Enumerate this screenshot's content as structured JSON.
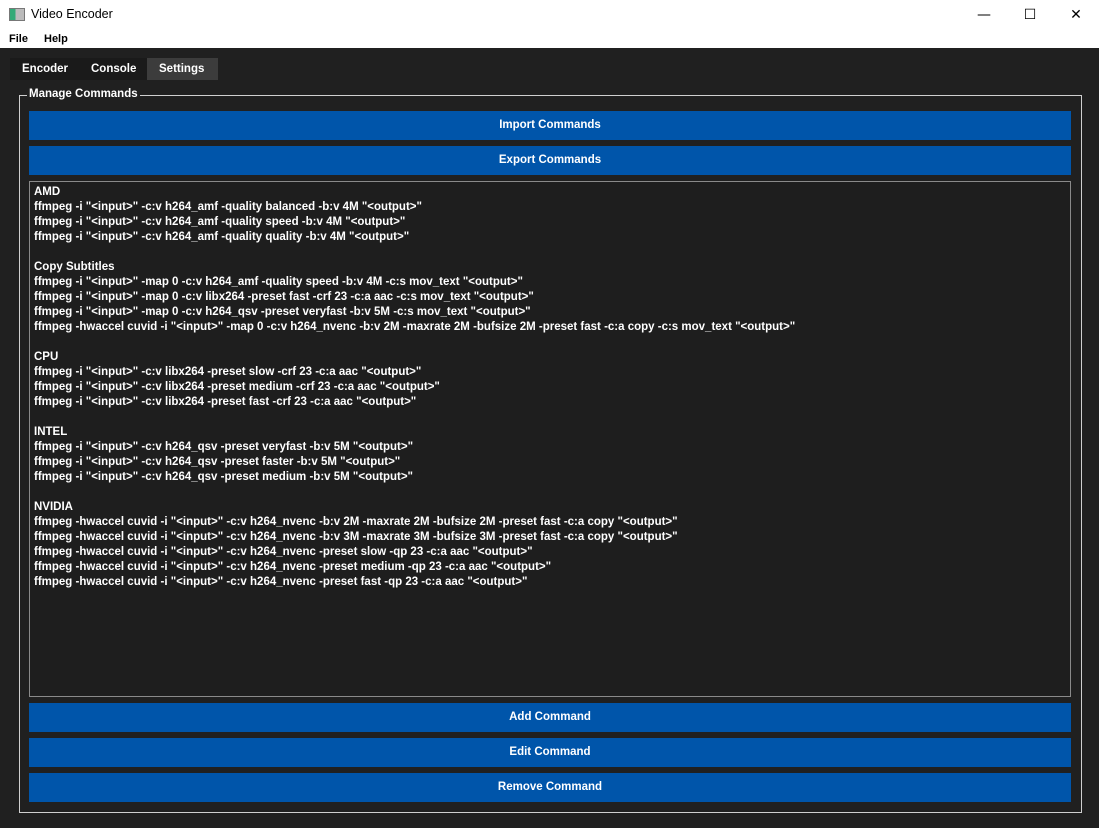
{
  "window": {
    "title": "Video Encoder",
    "minimize": "—",
    "maximize": "☐",
    "close": "✕"
  },
  "menu": [
    "File",
    "Help"
  ],
  "tabs": [
    {
      "label": "Encoder"
    },
    {
      "label": "Console"
    },
    {
      "label": "Settings",
      "active": true
    }
  ],
  "group_title": "Manage Commands",
  "buttons": {
    "import": "Import Commands",
    "export": "Export Commands",
    "add": "Add Command",
    "edit": "Edit Command",
    "remove": "Remove Command"
  },
  "colors": {
    "button": "#0055aa",
    "background": "#202020"
  },
  "commands": [
    "AMD",
    "ffmpeg -i \"<input>\" -c:v h264_amf -quality balanced -b:v 4M \"<output>\"",
    "ffmpeg -i \"<input>\" -c:v h264_amf -quality speed -b:v 4M \"<output>\"",
    "ffmpeg -i \"<input>\" -c:v h264_amf -quality quality -b:v 4M \"<output>\"",
    "",
    "Copy Subtitles",
    "ffmpeg -i \"<input>\" -map 0 -c:v h264_amf -quality speed -b:v 4M -c:s mov_text \"<output>\"",
    "ffmpeg -i \"<input>\" -map 0 -c:v libx264 -preset fast -crf 23 -c:a aac -c:s mov_text \"<output>\"",
    "ffmpeg -i \"<input>\" -map 0 -c:v h264_qsv -preset veryfast -b:v 5M -c:s mov_text \"<output>\"",
    "ffmpeg -hwaccel cuvid -i \"<input>\" -map 0 -c:v h264_nvenc -b:v 2M -maxrate 2M -bufsize 2M -preset fast -c:a copy -c:s mov_text \"<output>\"",
    "",
    "CPU",
    "ffmpeg -i \"<input>\" -c:v libx264 -preset slow -crf 23 -c:a aac \"<output>\"",
    "ffmpeg -i \"<input>\" -c:v libx264 -preset medium -crf 23 -c:a aac \"<output>\"",
    "ffmpeg -i \"<input>\" -c:v libx264 -preset fast -crf 23 -c:a aac \"<output>\"",
    "",
    "INTEL",
    "ffmpeg -i \"<input>\" -c:v h264_qsv -preset veryfast -b:v 5M \"<output>\"",
    "ffmpeg -i \"<input>\" -c:v h264_qsv -preset faster -b:v 5M \"<output>\"",
    "ffmpeg -i \"<input>\" -c:v h264_qsv -preset medium -b:v 5M \"<output>\"",
    "",
    "NVIDIA",
    "ffmpeg -hwaccel cuvid -i \"<input>\" -c:v h264_nvenc -b:v 2M -maxrate 2M -bufsize 2M -preset fast -c:a copy \"<output>\"",
    "ffmpeg -hwaccel cuvid -i \"<input>\" -c:v h264_nvenc -b:v 3M -maxrate 3M -bufsize 3M -preset fast -c:a copy \"<output>\"",
    "ffmpeg -hwaccel cuvid -i \"<input>\" -c:v h264_nvenc -preset slow -qp 23 -c:a aac \"<output>\"",
    "ffmpeg -hwaccel cuvid -i \"<input>\" -c:v h264_nvenc -preset medium -qp 23 -c:a aac \"<output>\"",
    "ffmpeg -hwaccel cuvid -i \"<input>\" -c:v h264_nvenc -preset fast -qp 23 -c:a aac \"<output>\""
  ]
}
